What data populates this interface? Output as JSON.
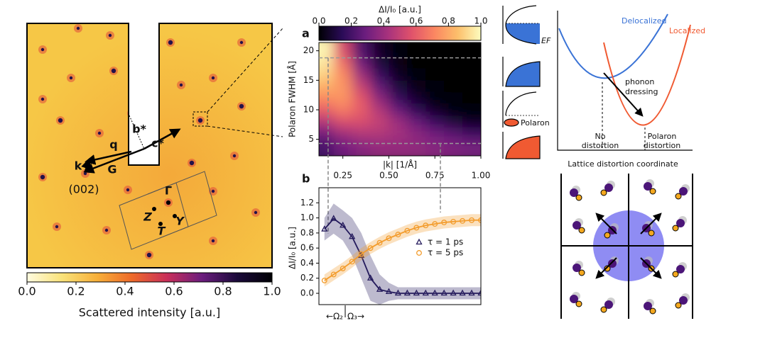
{
  "chart_data": [
    {
      "type": "image",
      "annotations": [
        "b*",
        "c*",
        "q",
        "k",
        "G",
        "(002)",
        "Γ",
        "Z",
        "T",
        "Y"
      ],
      "colorbar": {
        "label": "Scattered intensity [a.u.]",
        "lim": [
          0,
          1
        ],
        "ticks": [
          {
            "value": 0,
            "label": "0.0"
          },
          0.2,
          0.4,
          0.6,
          0.8,
          {
            "value": 1,
            "label": "1.0"
          }
        ],
        "colors": [
          "#fffbe0",
          "#f9e27a",
          "#f7b03a",
          "#ee6a2a",
          "#c92f5a",
          "#6b1d7e",
          "#1b0a3a",
          "#000004"
        ]
      }
    },
    {
      "type": "heatmap",
      "panel_label": "a",
      "xlabel": "|k| [1/Å]",
      "ylabel": "Polaron FWHM [Å]",
      "x": [
        0.15,
        0.25,
        0.35,
        0.45,
        0.55,
        0.65,
        0.75,
        0.85,
        0.95
      ],
      "y": [
        4,
        6,
        8,
        10,
        12,
        14,
        16,
        18,
        20
      ],
      "z": [
        [
          0.2,
          0.3,
          0.35,
          0.38,
          0.38,
          0.37,
          0.35,
          0.33,
          0.31
        ],
        [
          0.3,
          0.4,
          0.45,
          0.45,
          0.42,
          0.36,
          0.3,
          0.24,
          0.18
        ],
        [
          0.45,
          0.55,
          0.55,
          0.5,
          0.4,
          0.28,
          0.17,
          0.09,
          0.05
        ],
        [
          0.6,
          0.68,
          0.6,
          0.45,
          0.28,
          0.14,
          0.06,
          0.02,
          0.01
        ],
        [
          0.72,
          0.75,
          0.58,
          0.36,
          0.17,
          0.07,
          0.02,
          0.01,
          0
        ],
        [
          0.82,
          0.75,
          0.5,
          0.26,
          0.1,
          0.03,
          0.01,
          0,
          0
        ],
        [
          0.9,
          0.72,
          0.4,
          0.17,
          0.05,
          0.01,
          0,
          0,
          0
        ],
        [
          0.95,
          0.65,
          0.3,
          0.1,
          0.03,
          0,
          0,
          0,
          0
        ],
        [
          0.98,
          0.55,
          0.22,
          0.06,
          0.01,
          0,
          0,
          0,
          0
        ]
      ],
      "xlim": [
        0.12,
        1.0
      ],
      "ylim": [
        2.2,
        21.4
      ],
      "xticks": [
        0.25,
        {
          "value": 0.5,
          "label": "0.50"
        },
        0.75,
        {
          "value": 1,
          "label": "1.00"
        }
      ],
      "yticks": [
        5,
        10,
        15,
        20
      ],
      "guides": {
        "x": [
          0.17,
          0.78
        ],
        "y": [
          18.8,
          4.3
        ]
      },
      "colorbar": {
        "label": "ΔI/I₀ [a.u.]",
        "lim": [
          0,
          1
        ],
        "ticks": [
          {
            "value": 0,
            "label": "0.0"
          },
          0.2,
          0.4,
          0.6,
          0.8,
          {
            "value": 1,
            "label": "1.0"
          }
        ],
        "colors": [
          "#000004",
          "#2a0b57",
          "#6b1d7e",
          "#a8327d",
          "#e0526b",
          "#fb8761",
          "#fcbf6b",
          "#fcfdbf"
        ]
      }
    },
    {
      "type": "line",
      "panel_label": "b",
      "ylabel": "ΔI/I₀ [a.u.]",
      "x": [
        0.15,
        0.2,
        0.25,
        0.3,
        0.35,
        0.4,
        0.45,
        0.5,
        0.55,
        0.6,
        0.65,
        0.7,
        0.75,
        0.8,
        0.85,
        0.9,
        0.95,
        1.0
      ],
      "series": [
        {
          "name": "τ = 1 ps",
          "color": "#241a5c",
          "marker": "triangle",
          "values": [
            0.85,
            0.99,
            0.9,
            0.75,
            0.5,
            0.2,
            0.05,
            0.02,
            0,
            0,
            0,
            0,
            0,
            0,
            0,
            0,
            0,
            0
          ],
          "errors": [
            0.15,
            0.2,
            0.2,
            0.25,
            0.3,
            0.3,
            0.2,
            0.12,
            0.08,
            0.08,
            0.08,
            0.08,
            0.08,
            0.08,
            0.08,
            0.08,
            0.08,
            0.08
          ]
        },
        {
          "name": "τ = 5 ps",
          "color": "#f39c2c",
          "marker": "circle",
          "values": [
            0.17,
            0.25,
            0.33,
            0.42,
            0.52,
            0.6,
            0.67,
            0.73,
            0.78,
            0.83,
            0.87,
            0.9,
            0.92,
            0.94,
            0.95,
            0.96,
            0.97,
            0.97
          ],
          "errors": [
            0.08,
            0.08,
            0.08,
            0.08,
            0.08,
            0.08,
            0.08,
            0.08,
            0.08,
            0.08,
            0.08,
            0.08,
            0.08,
            0.08,
            0.08,
            0.08,
            0.08,
            0.08
          ]
        }
      ],
      "xlim": [
        0.12,
        1.0
      ],
      "ylim": [
        -0.15,
        1.4
      ],
      "yticks": [
        {
          "value": 0,
          "label": "0.0"
        },
        0.2,
        0.4,
        0.6,
        0.8,
        {
          "value": 1,
          "label": "1.0"
        },
        1.2
      ],
      "legend": "lower right",
      "annotations": [
        "←Ω₂",
        "Ω₃→"
      ]
    }
  ],
  "schematic": {
    "fermi_label": "EF",
    "polaron_label": "Polaron",
    "curve_labels": [
      "Delocalized",
      "Localized"
    ],
    "arrow_label": [
      "phonon",
      "dressing"
    ],
    "no_distortion": [
      "No",
      "distortion"
    ],
    "polaron_distortion": [
      "Polaron",
      "distortion"
    ],
    "xlabel": "Lattice distortion coordinate"
  }
}
